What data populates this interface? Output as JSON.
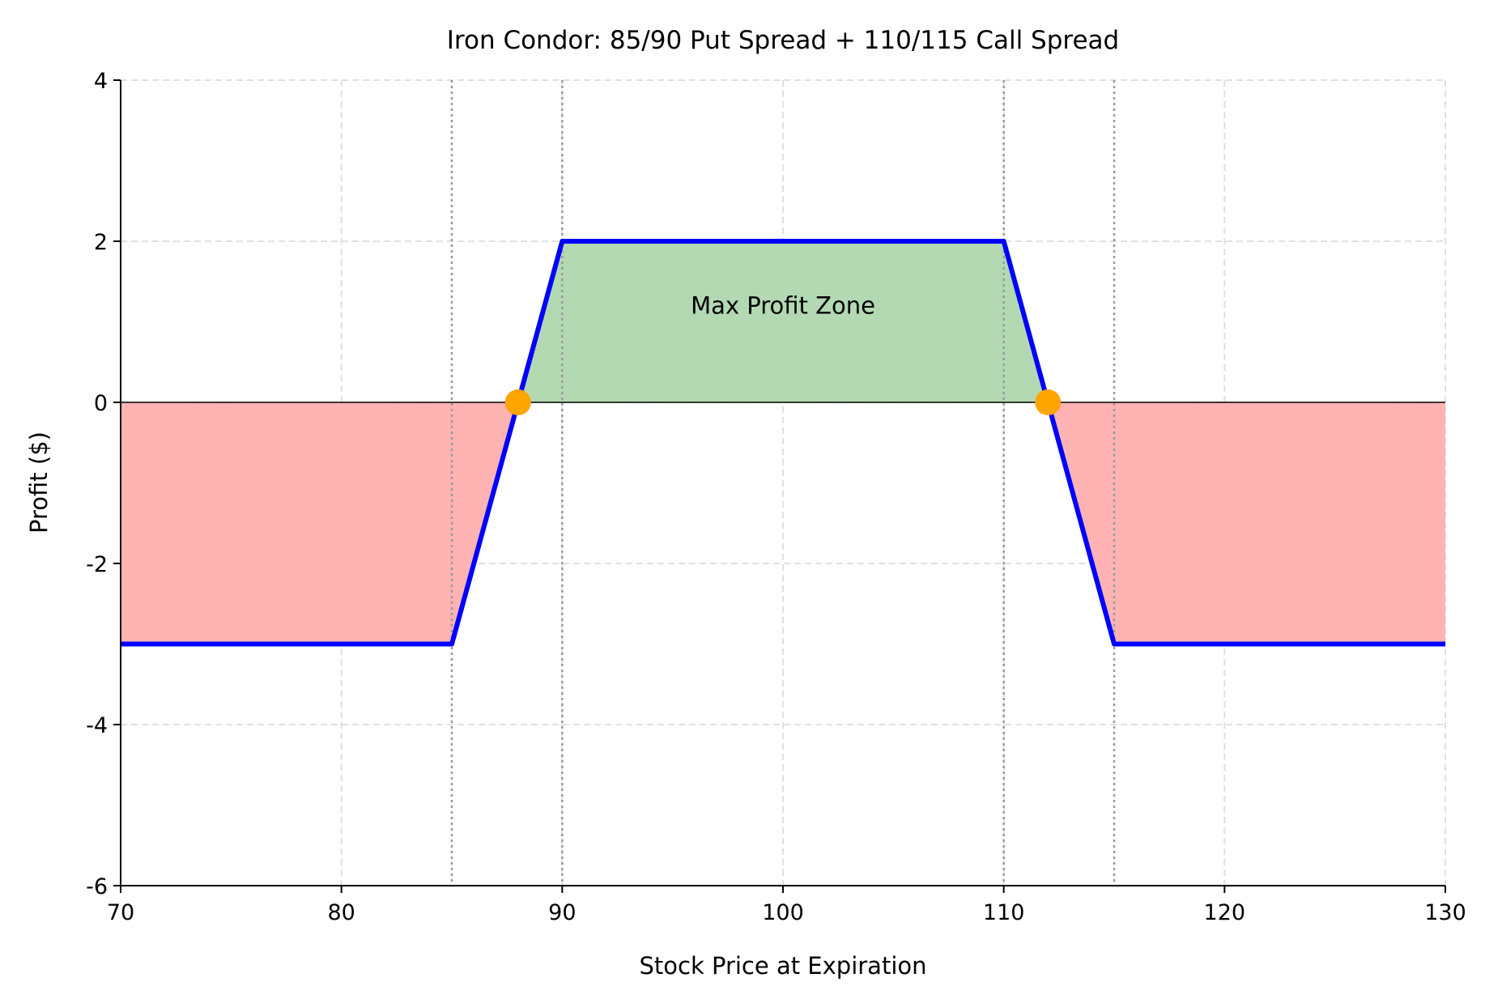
{
  "chart_data": {
    "type": "line",
    "title": "Iron Condor: 85/90 Put Spread + 110/115 Call Spread",
    "xlabel": "Stock Price at Expiration",
    "ylabel": "Profit ($)",
    "xlim": [
      70,
      130
    ],
    "ylim": [
      -6,
      4
    ],
    "xticks": [
      70,
      80,
      90,
      100,
      110,
      120,
      130
    ],
    "yticks": [
      -6,
      -4,
      -2,
      0,
      2,
      4
    ],
    "grid": true,
    "series": [
      {
        "x": [
          70,
          85,
          90,
          110,
          115,
          130
        ],
        "y": [
          -3,
          -3,
          2,
          2,
          -3,
          -3
        ],
        "color": "#0000ff"
      }
    ],
    "strike_lines": [
      85,
      90,
      110,
      115
    ],
    "breakevens": [
      {
        "x": 88,
        "y": 0
      },
      {
        "x": 112,
        "y": 0
      }
    ],
    "breakeven_color": "#ffa500",
    "profit_fill_color": "#b3d9b3",
    "loss_fill_color": "#ffb3b3",
    "annotation": {
      "text": "Max Profit Zone",
      "x": 100,
      "y": 1.2
    }
  }
}
